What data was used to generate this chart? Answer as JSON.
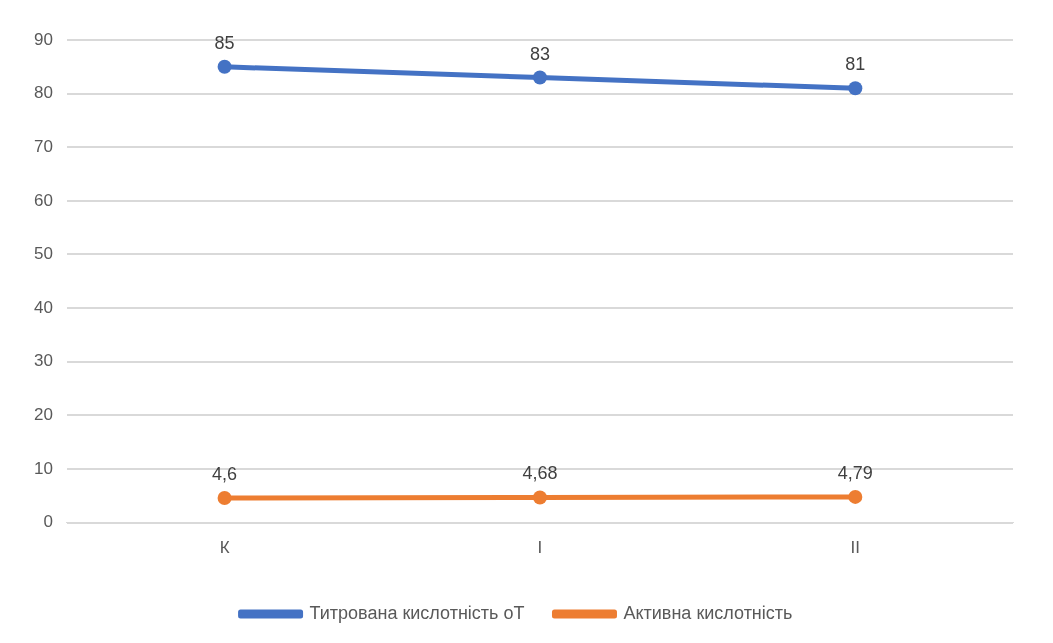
{
  "chart_data": {
    "type": "line",
    "categories": [
      "К",
      "І",
      "ІІ"
    ],
    "series": [
      {
        "name": "Титрована кислотність оТ",
        "color": "#4472c4",
        "values": [
          85,
          83,
          81
        ],
        "value_labels": [
          "85",
          "83",
          "81"
        ]
      },
      {
        "name": "Активна кислотність",
        "color": "#ed7d31",
        "values": [
          4.6,
          4.68,
          4.79
        ],
        "value_labels": [
          "4,6",
          "4,68",
          "4,79"
        ]
      }
    ],
    "ylim": [
      0,
      90
    ],
    "yticks": [
      0,
      10,
      20,
      30,
      40,
      50,
      60,
      70,
      80,
      90
    ],
    "grid": "y",
    "legend": "bottom",
    "marker": "circle",
    "line_style": "solid"
  }
}
